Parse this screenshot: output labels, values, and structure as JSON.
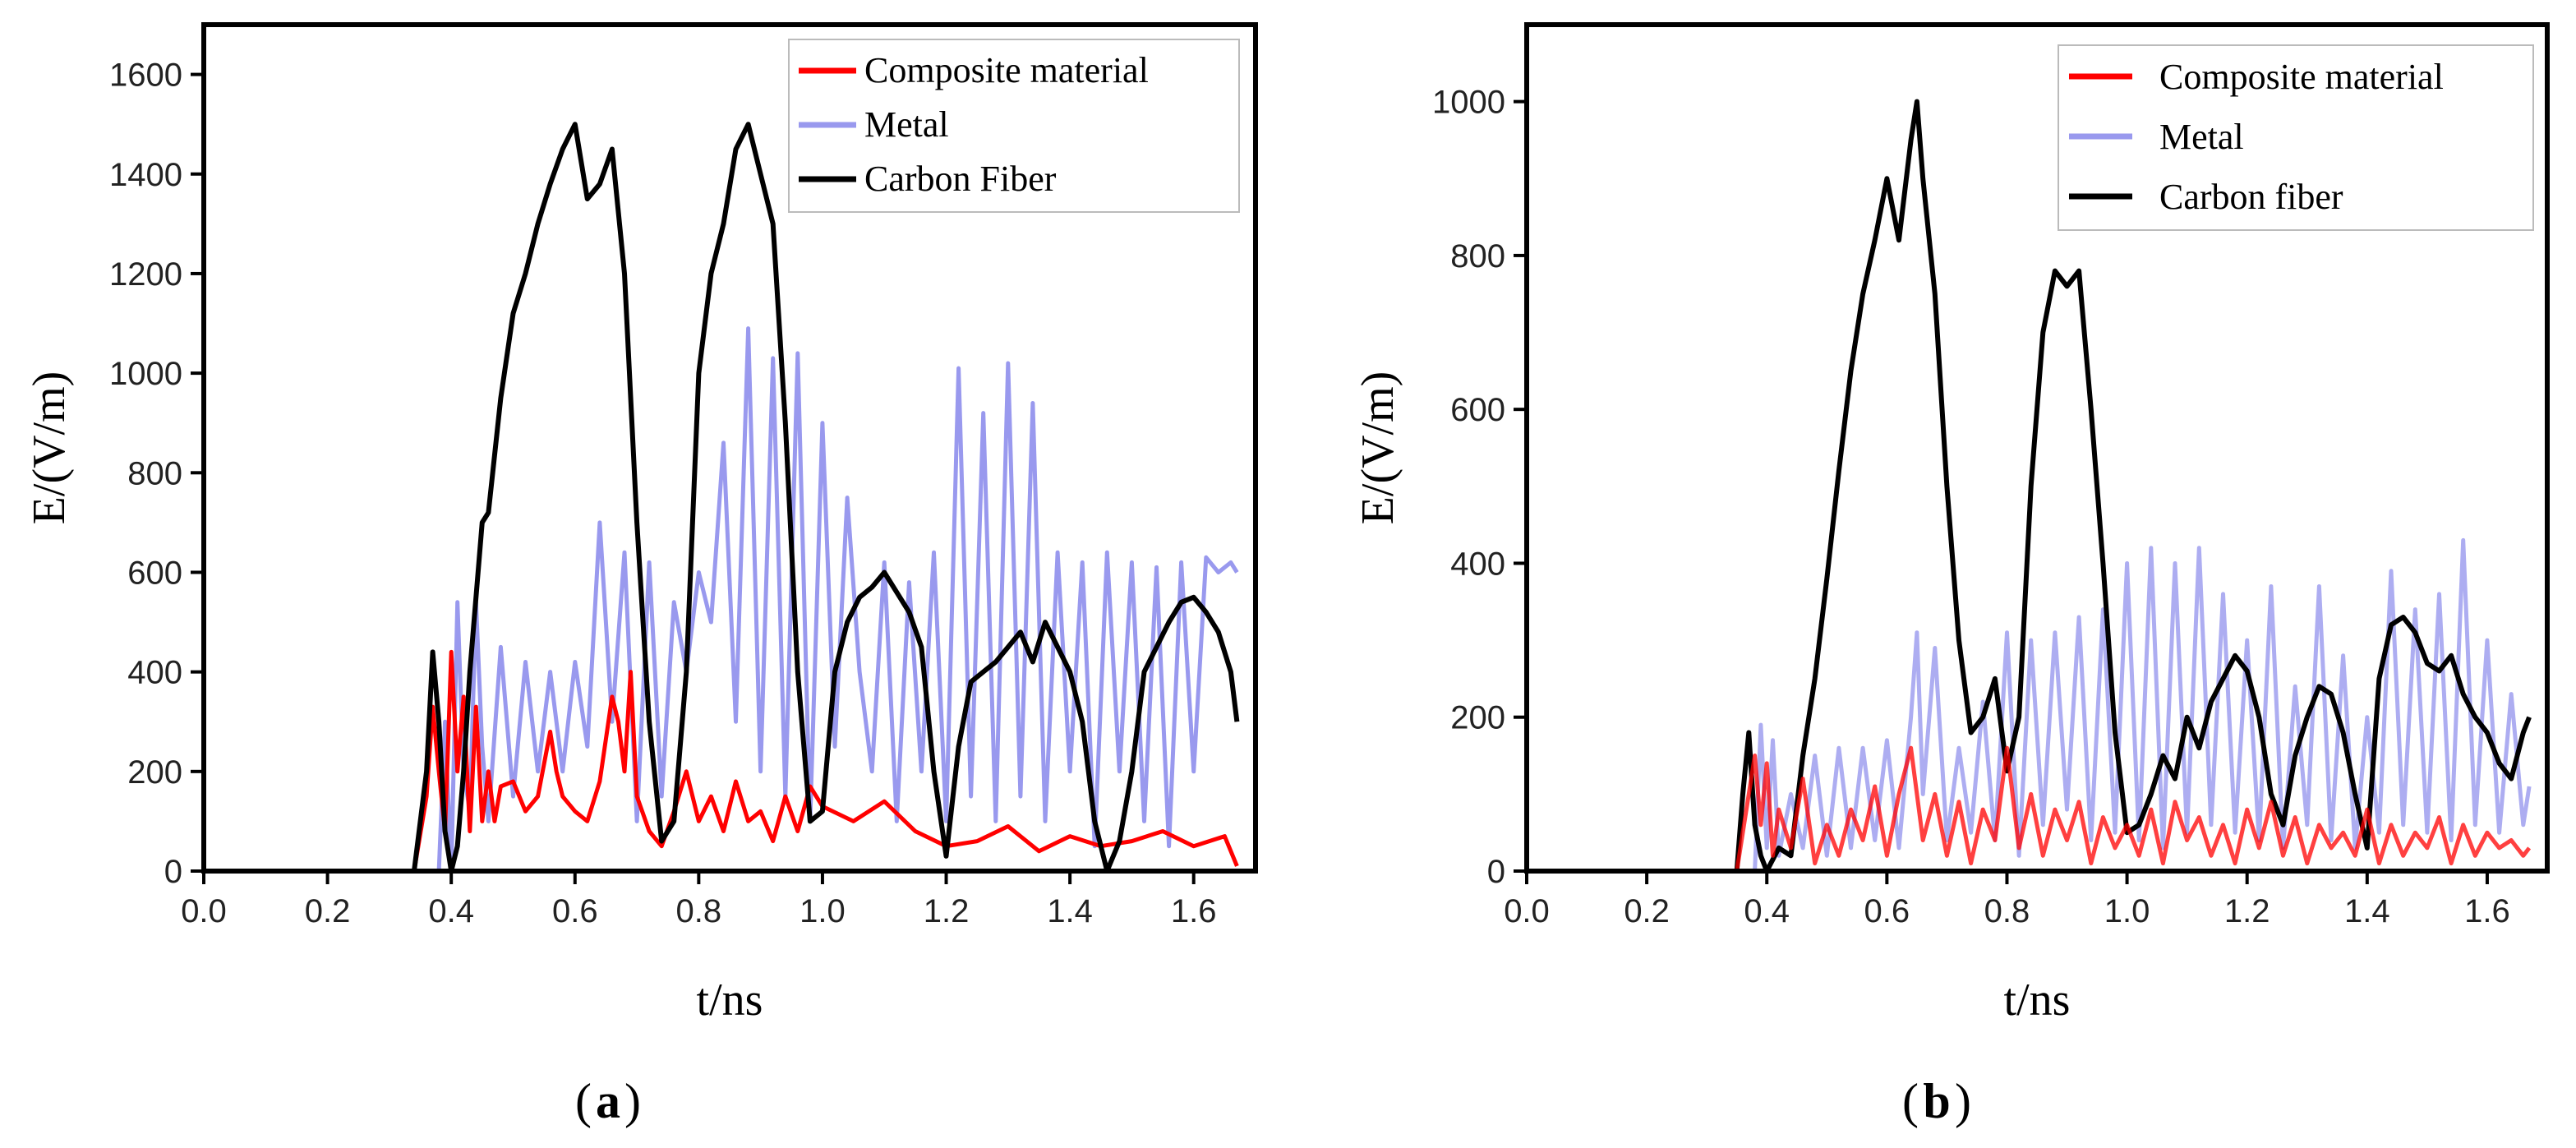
{
  "chart_data": [
    {
      "id": "a",
      "type": "line",
      "caption_label": "a",
      "xlabel": "t/ns",
      "ylabel": "E/(V/m)",
      "xlim": [
        0,
        1.7
      ],
      "ylim": [
        0,
        1700
      ],
      "xticks": [
        "0.0",
        "0.2",
        "0.4",
        "0.6",
        "0.8",
        "1.0",
        "1.2",
        "1.4",
        "1.6"
      ],
      "yticks": [
        "0",
        "200",
        "400",
        "600",
        "800",
        "1000",
        "1200",
        "1400",
        "1600"
      ],
      "legend_position": "top-right",
      "series": [
        {
          "name": "Composite material",
          "color": "#ff0000",
          "x": [
            0,
            0.34,
            0.36,
            0.37,
            0.38,
            0.39,
            0.4,
            0.41,
            0.42,
            0.43,
            0.44,
            0.45,
            0.46,
            0.47,
            0.48,
            0.5,
            0.52,
            0.54,
            0.56,
            0.57,
            0.58,
            0.6,
            0.62,
            0.64,
            0.66,
            0.67,
            0.68,
            0.69,
            0.7,
            0.72,
            0.74,
            0.76,
            0.78,
            0.8,
            0.82,
            0.84,
            0.86,
            0.88,
            0.9,
            0.92,
            0.94,
            0.96,
            0.98,
            1.0,
            1.05,
            1.1,
            1.15,
            1.2,
            1.25,
            1.3,
            1.35,
            1.4,
            1.45,
            1.5,
            1.55,
            1.6,
            1.65,
            1.67
          ],
          "values": [
            0,
            0,
            150,
            330,
            200,
            80,
            440,
            200,
            350,
            80,
            330,
            100,
            200,
            100,
            170,
            180,
            120,
            150,
            280,
            200,
            150,
            120,
            100,
            180,
            350,
            300,
            200,
            400,
            150,
            80,
            50,
            120,
            200,
            100,
            150,
            80,
            180,
            100,
            120,
            60,
            150,
            80,
            170,
            130,
            100,
            140,
            80,
            50,
            60,
            90,
            40,
            70,
            50,
            60,
            80,
            50,
            70,
            10
          ]
        },
        {
          "name": "Metal",
          "color": "#9999ee",
          "x": [
            0,
            0.38,
            0.39,
            0.4,
            0.41,
            0.42,
            0.43,
            0.44,
            0.45,
            0.46,
            0.48,
            0.5,
            0.52,
            0.54,
            0.56,
            0.58,
            0.6,
            0.62,
            0.64,
            0.66,
            0.68,
            0.7,
            0.72,
            0.74,
            0.76,
            0.78,
            0.8,
            0.82,
            0.84,
            0.86,
            0.88,
            0.9,
            0.92,
            0.94,
            0.96,
            0.98,
            1.0,
            1.02,
            1.04,
            1.06,
            1.08,
            1.1,
            1.12,
            1.14,
            1.16,
            1.18,
            1.2,
            1.22,
            1.24,
            1.26,
            1.28,
            1.3,
            1.32,
            1.34,
            1.36,
            1.38,
            1.4,
            1.42,
            1.44,
            1.46,
            1.48,
            1.5,
            1.52,
            1.54,
            1.56,
            1.58,
            1.6,
            1.62,
            1.64,
            1.66,
            1.67
          ],
          "values": [
            0,
            0,
            300,
            0,
            540,
            200,
            120,
            540,
            250,
            100,
            450,
            150,
            420,
            200,
            400,
            200,
            420,
            250,
            700,
            300,
            640,
            100,
            620,
            150,
            540,
            400,
            600,
            500,
            860,
            300,
            1090,
            200,
            1030,
            150,
            1040,
            100,
            900,
            250,
            750,
            400,
            200,
            620,
            100,
            580,
            200,
            640,
            100,
            1010,
            150,
            920,
            100,
            1020,
            150,
            940,
            100,
            640,
            200,
            620,
            50,
            640,
            200,
            620,
            100,
            610,
            50,
            620,
            200,
            630,
            600,
            620,
            600
          ]
        },
        {
          "name": "Carbon Fiber",
          "color": "#000000",
          "x": [
            0,
            0.34,
            0.36,
            0.37,
            0.38,
            0.39,
            0.4,
            0.41,
            0.42,
            0.43,
            0.44,
            0.45,
            0.46,
            0.48,
            0.5,
            0.52,
            0.54,
            0.56,
            0.58,
            0.6,
            0.62,
            0.64,
            0.66,
            0.68,
            0.7,
            0.72,
            0.74,
            0.76,
            0.78,
            0.8,
            0.82,
            0.84,
            0.86,
            0.88,
            0.9,
            0.92,
            0.94,
            0.96,
            0.98,
            1.0,
            1.02,
            1.04,
            1.06,
            1.08,
            1.1,
            1.12,
            1.14,
            1.16,
            1.18,
            1.2,
            1.22,
            1.24,
            1.26,
            1.28,
            1.3,
            1.32,
            1.34,
            1.36,
            1.38,
            1.4,
            1.42,
            1.44,
            1.46,
            1.48,
            1.5,
            1.52,
            1.54,
            1.56,
            1.58,
            1.6,
            1.62,
            1.64,
            1.66,
            1.67
          ],
          "values": [
            0,
            0,
            200,
            440,
            300,
            80,
            0,
            50,
            200,
            400,
            550,
            700,
            720,
            950,
            1120,
            1200,
            1300,
            1380,
            1450,
            1500,
            1350,
            1380,
            1450,
            1200,
            700,
            300,
            60,
            100,
            400,
            1000,
            1200,
            1300,
            1450,
            1500,
            1400,
            1300,
            900,
            400,
            100,
            120,
            400,
            500,
            550,
            570,
            600,
            560,
            520,
            450,
            200,
            30,
            250,
            380,
            400,
            420,
            450,
            480,
            420,
            500,
            450,
            400,
            300,
            100,
            0,
            60,
            200,
            400,
            450,
            500,
            540,
            550,
            520,
            480,
            400,
            300
          ]
        }
      ]
    },
    {
      "id": "b",
      "type": "line",
      "caption_label": "b",
      "xlabel": "t/ns",
      "ylabel": "E/(V/m)",
      "xlim": [
        0,
        1.7
      ],
      "ylim": [
        0,
        1100
      ],
      "xticks": [
        "0.0",
        "0.2",
        "0.4",
        "0.6",
        "0.8",
        "1.0",
        "1.2",
        "1.4",
        "1.6"
      ],
      "yticks": [
        "0",
        "200",
        "400",
        "600",
        "800",
        "1000"
      ],
      "legend_position": "top-right",
      "series": [
        {
          "name": "Composite material",
          "color": "#ff0000",
          "x": [
            0,
            0.35,
            0.37,
            0.38,
            0.39,
            0.4,
            0.41,
            0.42,
            0.44,
            0.46,
            0.48,
            0.5,
            0.52,
            0.54,
            0.56,
            0.58,
            0.6,
            0.62,
            0.64,
            0.66,
            0.68,
            0.7,
            0.72,
            0.74,
            0.76,
            0.78,
            0.8,
            0.82,
            0.84,
            0.86,
            0.88,
            0.9,
            0.92,
            0.94,
            0.96,
            0.98,
            1.0,
            1.02,
            1.04,
            1.06,
            1.08,
            1.1,
            1.12,
            1.14,
            1.16,
            1.18,
            1.2,
            1.22,
            1.24,
            1.26,
            1.28,
            1.3,
            1.32,
            1.34,
            1.36,
            1.38,
            1.4,
            1.42,
            1.44,
            1.46,
            1.48,
            1.5,
            1.52,
            1.54,
            1.56,
            1.58,
            1.6,
            1.62,
            1.64,
            1.66,
            1.67
          ],
          "values": [
            0,
            0,
            100,
            150,
            60,
            140,
            20,
            80,
            30,
            120,
            10,
            60,
            20,
            80,
            40,
            110,
            20,
            100,
            160,
            40,
            100,
            20,
            90,
            10,
            80,
            40,
            160,
            30,
            100,
            20,
            80,
            40,
            90,
            10,
            70,
            30,
            60,
            20,
            80,
            10,
            90,
            40,
            70,
            20,
            60,
            10,
            80,
            30,
            90,
            20,
            70,
            10,
            60,
            30,
            50,
            20,
            80,
            10,
            60,
            20,
            50,
            30,
            70,
            10,
            60,
            20,
            50,
            30,
            40,
            20,
            30
          ]
        },
        {
          "name": "Metal",
          "color": "#9999ee",
          "x": [
            0,
            0.38,
            0.39,
            0.4,
            0.41,
            0.42,
            0.44,
            0.46,
            0.48,
            0.5,
            0.52,
            0.54,
            0.56,
            0.58,
            0.6,
            0.62,
            0.64,
            0.65,
            0.66,
            0.68,
            0.7,
            0.72,
            0.74,
            0.76,
            0.78,
            0.8,
            0.82,
            0.84,
            0.86,
            0.88,
            0.9,
            0.92,
            0.94,
            0.96,
            0.98,
            1.0,
            1.02,
            1.04,
            1.06,
            1.08,
            1.1,
            1.12,
            1.14,
            1.16,
            1.18,
            1.2,
            1.22,
            1.24,
            1.26,
            1.28,
            1.3,
            1.32,
            1.34,
            1.36,
            1.38,
            1.4,
            1.42,
            1.44,
            1.46,
            1.48,
            1.5,
            1.52,
            1.54,
            1.56,
            1.58,
            1.6,
            1.62,
            1.64,
            1.66,
            1.67
          ],
          "values": [
            0,
            0,
            190,
            30,
            170,
            20,
            100,
            30,
            150,
            20,
            160,
            30,
            160,
            40,
            170,
            30,
            200,
            310,
            100,
            290,
            40,
            160,
            50,
            220,
            40,
            310,
            20,
            300,
            60,
            310,
            80,
            330,
            40,
            340,
            50,
            400,
            40,
            420,
            30,
            400,
            50,
            420,
            60,
            360,
            50,
            300,
            40,
            370,
            30,
            240,
            60,
            370,
            40,
            280,
            30,
            200,
            50,
            390,
            60,
            340,
            50,
            360,
            40,
            430,
            60,
            300,
            50,
            230,
            60,
            110
          ]
        },
        {
          "name": "Carbon fiber",
          "color": "#000000",
          "x": [
            0,
            0.35,
            0.36,
            0.37,
            0.38,
            0.39,
            0.4,
            0.42,
            0.44,
            0.46,
            0.48,
            0.5,
            0.52,
            0.54,
            0.56,
            0.58,
            0.6,
            0.62,
            0.64,
            0.65,
            0.66,
            0.68,
            0.7,
            0.72,
            0.74,
            0.76,
            0.78,
            0.8,
            0.82,
            0.84,
            0.86,
            0.88,
            0.9,
            0.92,
            0.94,
            0.96,
            0.98,
            1.0,
            1.02,
            1.04,
            1.06,
            1.08,
            1.1,
            1.12,
            1.14,
            1.16,
            1.18,
            1.2,
            1.22,
            1.24,
            1.26,
            1.28,
            1.3,
            1.32,
            1.34,
            1.36,
            1.38,
            1.4,
            1.42,
            1.44,
            1.46,
            1.48,
            1.5,
            1.52,
            1.54,
            1.56,
            1.58,
            1.6,
            1.62,
            1.64,
            1.66,
            1.67
          ],
          "values": [
            0,
            0,
            100,
            180,
            60,
            20,
            0,
            30,
            20,
            150,
            250,
            380,
            520,
            650,
            750,
            820,
            900,
            820,
            950,
            1000,
            900,
            750,
            500,
            300,
            180,
            200,
            250,
            130,
            200,
            500,
            700,
            780,
            760,
            780,
            600,
            400,
            180,
            50,
            60,
            100,
            150,
            120,
            200,
            160,
            220,
            250,
            280,
            260,
            200,
            100,
            60,
            150,
            200,
            240,
            230,
            180,
            100,
            30,
            250,
            320,
            330,
            310,
            270,
            260,
            280,
            230,
            200,
            180,
            140,
            120,
            180,
            200
          ]
        }
      ]
    }
  ]
}
